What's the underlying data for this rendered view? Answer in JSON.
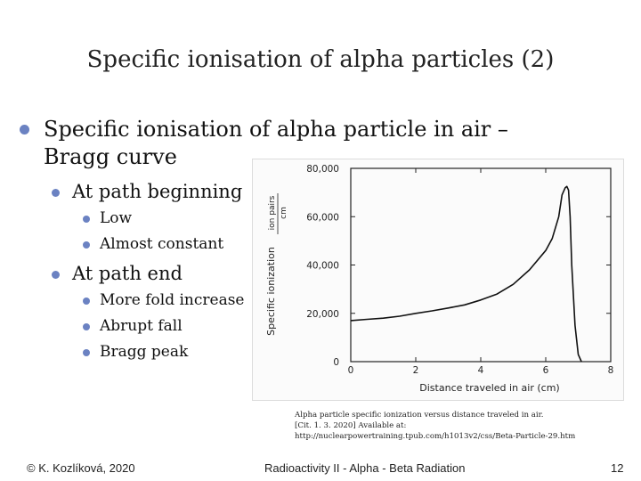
{
  "slide": {
    "title": "Specific ionisation of alpha particles (2)",
    "bullets": [
      {
        "text": "Specific ionisation of alpha particle in air – Bragg curve"
      },
      {
        "text": "At path beginning"
      },
      {
        "text": "Low"
      },
      {
        "text": "Almost constant"
      },
      {
        "text": "At path end"
      },
      {
        "text": "More fold increase"
      },
      {
        "text": "Abrupt fall"
      },
      {
        "text": "Bragg peak"
      }
    ],
    "caption": {
      "line1": "Alpha particle specific ionization versus distance traveled in air.",
      "line2": "[Cit. 1. 3. 2020] Available at:",
      "line3": "http://nuclearpowertraining.tpub.com/h1013v2/css/Beta-Particle-29.htm"
    },
    "footer": {
      "author": "© K. Kozlíková, 2020",
      "course": "Radioactivity II - Alpha - Beta Radiation",
      "page": "12"
    },
    "bullet_color": "#6b82c2"
  },
  "chart_data": {
    "type": "line",
    "title": "",
    "xlabel": "Distance traveled in air (cm)",
    "ylabel": "Specific ionization",
    "ylabel_unit_top": "ion pairs",
    "ylabel_unit_bottom": "cm",
    "xlim": [
      0,
      8
    ],
    "ylim": [
      0,
      80000
    ],
    "x_ticks": [
      "0",
      "2",
      "4",
      "6",
      "8"
    ],
    "y_ticks": [
      "0",
      "20,000",
      "40,000",
      "60,000",
      "80,000"
    ],
    "grid": false,
    "series": [
      {
        "x": [
          0,
          0.5,
          1,
          1.5,
          2,
          2.5,
          3,
          3.5,
          4,
          4.5,
          5,
          5.5,
          6,
          6.2,
          6.4,
          6.5,
          6.6,
          6.65,
          6.7,
          6.75,
          6.8,
          6.9,
          7.0,
          7.1
        ],
        "y": [
          17000,
          17500,
          18000,
          18800,
          20000,
          21000,
          22200,
          23500,
          25500,
          28000,
          32000,
          38000,
          46000,
          51000,
          60000,
          69000,
          72000,
          72500,
          71000,
          60000,
          40000,
          15000,
          3000,
          0
        ]
      }
    ]
  }
}
